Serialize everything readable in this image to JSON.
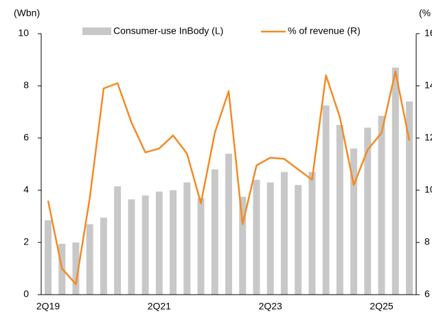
{
  "chart_data": {
    "type": "bar-line",
    "y_label": "(Wbn)",
    "y2_label": "(%",
    "categories": [
      "2Q19",
      null,
      null,
      null,
      null,
      null,
      null,
      null,
      "2Q21",
      null,
      null,
      null,
      null,
      null,
      null,
      null,
      "2Q23",
      null,
      null,
      null,
      null,
      null,
      null,
      null,
      "2Q25",
      null,
      null
    ],
    "series": [
      {
        "name": "Consumer-use InBody (L)",
        "type": "bar",
        "color": "#c8c8c8",
        "values": [
          2.85,
          1.95,
          2.0,
          2.7,
          2.95,
          4.15,
          3.65,
          3.8,
          3.95,
          4.0,
          4.3,
          3.7,
          4.8,
          5.4,
          3.75,
          4.4,
          4.3,
          4.7,
          4.2,
          4.7,
          7.25,
          6.5,
          5.6,
          6.4,
          6.85,
          8.7,
          7.4
        ]
      },
      {
        "name": "% of revenue (R)",
        "type": "line",
        "color": "#f28a24",
        "axis": "y2",
        "values": [
          9.6,
          7.0,
          6.4,
          9.7,
          13.9,
          14.1,
          12.6,
          11.45,
          11.6,
          12.1,
          11.4,
          9.5,
          12.2,
          13.8,
          8.7,
          10.95,
          11.25,
          11.2,
          10.8,
          10.4,
          14.4,
          12.8,
          10.2,
          11.55,
          12.2,
          14.55,
          11.9
        ]
      }
    ],
    "ylim": [
      0,
      10
    ],
    "yticks": [
      0,
      2,
      4,
      6,
      8,
      10
    ],
    "y2lim": [
      6,
      16
    ],
    "y2ticks": [
      6,
      8,
      10,
      12,
      14,
      16
    ]
  }
}
